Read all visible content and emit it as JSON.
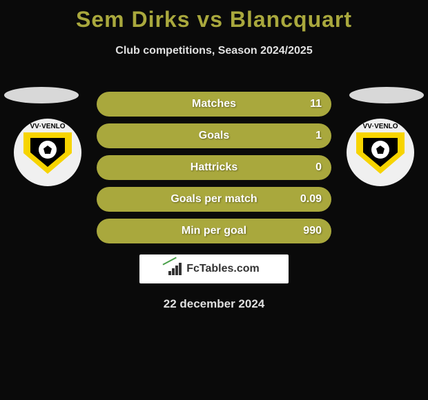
{
  "title": "Sem Dirks vs Blancquart",
  "subtitle": "Club competitions, Season 2024/2025",
  "club_logo_text": "VV·VENLO",
  "colors": {
    "pill_bg": "#a9a83d",
    "title_color": "#a9a83d",
    "background": "#0a0a0a",
    "text_light": "#e0e0e0",
    "ellipse": "#d8d8d8",
    "shield_yellow": "#f7d400"
  },
  "stats": [
    {
      "label": "Matches",
      "value": "11"
    },
    {
      "label": "Goals",
      "value": "1"
    },
    {
      "label": "Hattricks",
      "value": "0"
    },
    {
      "label": "Goals per match",
      "value": "0.09"
    },
    {
      "label": "Min per goal",
      "value": "990"
    }
  ],
  "watermark": "FcTables.com",
  "footer_date": "22 december 2024"
}
